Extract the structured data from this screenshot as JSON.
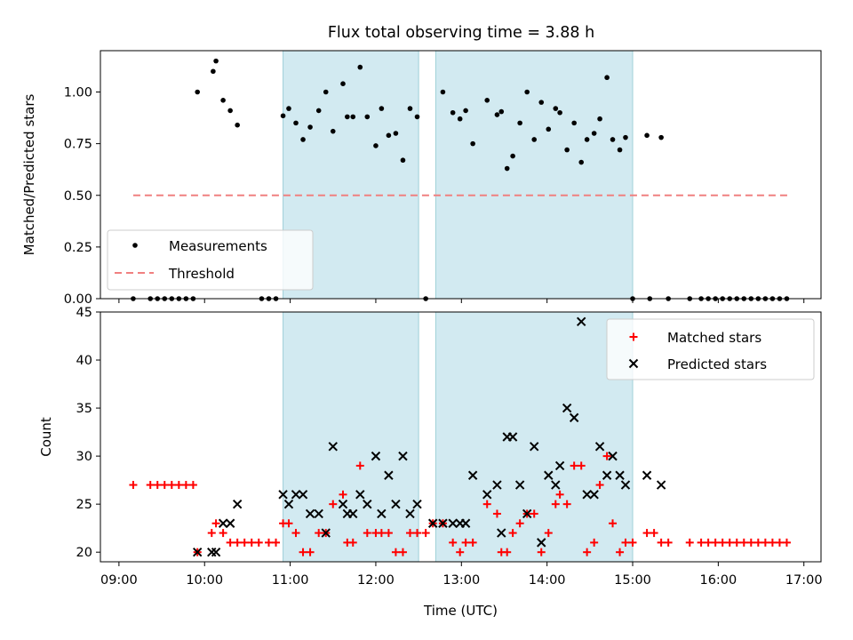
{
  "chart_data": [
    {
      "type": "scatter",
      "title": "Flux total observing time = 3.88 h",
      "xlabel": "",
      "ylabel": "Matched/Predicted stars",
      "xlim": [
        "08:47",
        "17:12"
      ],
      "ylim": [
        0,
        1.2
      ],
      "xticks": [
        "09:00",
        "10:00",
        "11:00",
        "12:00",
        "13:00",
        "14:00",
        "15:00",
        "16:00",
        "17:00"
      ],
      "yticks": [
        "0.00",
        "0.25",
        "0.50",
        "0.75",
        "1.00"
      ],
      "shaded_intervals": [
        [
          "10:55",
          "12:30"
        ],
        [
          "12:42",
          "15:00"
        ]
      ],
      "legend": {
        "placement": "lower-left",
        "entries": [
          "Measurements",
          "Threshold"
        ]
      },
      "colors": {
        "measurements": "#000000",
        "threshold": "#f08080",
        "shade": "#add8e6"
      },
      "threshold": {
        "name": "Threshold",
        "value": 0.5,
        "x_range": [
          "09:10",
          "16:50"
        ]
      },
      "series": [
        {
          "name": "Measurements",
          "points": [
            [
              "09:10",
              0
            ],
            [
              "09:22",
              0
            ],
            [
              "09:27",
              0
            ],
            [
              "09:32",
              0
            ],
            [
              "09:37",
              0
            ],
            [
              "09:42",
              0
            ],
            [
              "09:47",
              0
            ],
            [
              "09:52",
              0
            ],
            [
              "09:55",
              1.0
            ],
            [
              "10:06",
              1.1
            ],
            [
              "10:08",
              1.15
            ],
            [
              "10:13",
              0.96
            ],
            [
              "10:18",
              0.91
            ],
            [
              "10:23",
              0.84
            ],
            [
              "10:40",
              0
            ],
            [
              "10:45",
              0
            ],
            [
              "10:50",
              0
            ],
            [
              "10:55",
              0.885
            ],
            [
              "10:59",
              0.92
            ],
            [
              "11:04",
              0.85
            ],
            [
              "11:09",
              0.77
            ],
            [
              "11:14",
              0.83
            ],
            [
              "11:20",
              0.91
            ],
            [
              "11:25",
              1.0
            ],
            [
              "11:30",
              0.81
            ],
            [
              "11:37",
              1.04
            ],
            [
              "11:40",
              0.88
            ],
            [
              "11:44",
              0.88
            ],
            [
              "11:49",
              1.12
            ],
            [
              "11:54",
              0.88
            ],
            [
              "12:00",
              0.74
            ],
            [
              "12:04",
              0.92
            ],
            [
              "12:09",
              0.79
            ],
            [
              "12:14",
              0.8
            ],
            [
              "12:19",
              0.67
            ],
            [
              "12:24",
              0.92
            ],
            [
              "12:29",
              0.88
            ],
            [
              "12:35",
              0
            ],
            [
              "12:47",
              1.0
            ],
            [
              "12:54",
              0.9
            ],
            [
              "12:59",
              0.87
            ],
            [
              "13:03",
              0.91
            ],
            [
              "13:08",
              0.75
            ],
            [
              "13:18",
              0.96
            ],
            [
              "13:25",
              0.89
            ],
            [
              "13:28",
              0.905
            ],
            [
              "13:32",
              0.63
            ],
            [
              "13:36",
              0.69
            ],
            [
              "13:41",
              0.85
            ],
            [
              "13:46",
              1.0
            ],
            [
              "13:51",
              0.77
            ],
            [
              "13:56",
              0.95
            ],
            [
              "14:01",
              0.82
            ],
            [
              "14:06",
              0.92
            ],
            [
              "14:09",
              0.9
            ],
            [
              "14:14",
              0.72
            ],
            [
              "14:19",
              0.85
            ],
            [
              "14:24",
              0.66
            ],
            [
              "14:28",
              0.77
            ],
            [
              "14:33",
              0.8
            ],
            [
              "14:37",
              0.87
            ],
            [
              "14:42",
              1.07
            ],
            [
              "14:46",
              0.77
            ],
            [
              "14:51",
              0.72
            ],
            [
              "14:55",
              0.78
            ],
            [
              "15:10",
              0.79
            ],
            [
              "15:20",
              0.78
            ],
            [
              "15:00",
              0
            ],
            [
              "15:12",
              0
            ],
            [
              "15:25",
              0
            ],
            [
              "15:40",
              0
            ],
            [
              "15:48",
              0
            ],
            [
              "15:53",
              0
            ],
            [
              "15:58",
              0
            ],
            [
              "16:03",
              0
            ],
            [
              "16:08",
              0
            ],
            [
              "16:13",
              0
            ],
            [
              "16:18",
              0
            ],
            [
              "16:23",
              0
            ],
            [
              "16:28",
              0
            ],
            [
              "16:33",
              0
            ],
            [
              "16:38",
              0
            ],
            [
              "16:43",
              0
            ],
            [
              "16:48",
              0
            ]
          ]
        }
      ]
    },
    {
      "type": "scatter",
      "title": "",
      "xlabel": "Time (UTC)",
      "ylabel": "Count",
      "xlim": [
        "08:47",
        "17:12"
      ],
      "ylim": [
        19,
        45
      ],
      "xticks": [
        "09:00",
        "10:00",
        "11:00",
        "12:00",
        "13:00",
        "14:00",
        "15:00",
        "16:00",
        "17:00"
      ],
      "yticks": [
        "20",
        "25",
        "30",
        "35",
        "40",
        "45"
      ],
      "shaded_intervals": [
        [
          "10:55",
          "12:30"
        ],
        [
          "12:42",
          "15:00"
        ]
      ],
      "legend": {
        "placement": "upper-right",
        "entries": [
          "Matched stars",
          "Predicted stars"
        ]
      },
      "colors": {
        "matched": "#ff0000",
        "predicted": "#000000",
        "shade": "#add8e6"
      },
      "series": [
        {
          "name": "Matched stars",
          "marker": "plus",
          "points": [
            [
              "09:10",
              27
            ],
            [
              "09:22",
              27
            ],
            [
              "09:27",
              27
            ],
            [
              "09:32",
              27
            ],
            [
              "09:37",
              27
            ],
            [
              "09:42",
              27
            ],
            [
              "09:47",
              27
            ],
            [
              "09:52",
              27
            ],
            [
              "09:55",
              20
            ],
            [
              "10:05",
              22
            ],
            [
              "10:08",
              23
            ],
            [
              "10:13",
              22
            ],
            [
              "10:18",
              21
            ],
            [
              "10:23",
              21
            ],
            [
              "10:28",
              21
            ],
            [
              "10:33",
              21
            ],
            [
              "10:38",
              21
            ],
            [
              "10:45",
              21
            ],
            [
              "10:50",
              21
            ],
            [
              "10:55",
              23
            ],
            [
              "10:59",
              23
            ],
            [
              "11:04",
              22
            ],
            [
              "11:09",
              20
            ],
            [
              "11:14",
              20
            ],
            [
              "11:20",
              22
            ],
            [
              "11:25",
              22
            ],
            [
              "11:30",
              25
            ],
            [
              "11:37",
              26
            ],
            [
              "11:40",
              21
            ],
            [
              "11:44",
              21
            ],
            [
              "11:49",
              29
            ],
            [
              "11:54",
              22
            ],
            [
              "12:00",
              22
            ],
            [
              "12:04",
              22
            ],
            [
              "12:09",
              22
            ],
            [
              "12:14",
              20
            ],
            [
              "12:19",
              20
            ],
            [
              "12:24",
              22
            ],
            [
              "12:29",
              22
            ],
            [
              "12:35",
              22
            ],
            [
              "12:40",
              23
            ],
            [
              "12:47",
              23
            ],
            [
              "12:54",
              21
            ],
            [
              "12:59",
              20
            ],
            [
              "13:03",
              21
            ],
            [
              "13:08",
              21
            ],
            [
              "13:18",
              25
            ],
            [
              "13:25",
              24
            ],
            [
              "13:28",
              20
            ],
            [
              "13:32",
              20
            ],
            [
              "13:36",
              22
            ],
            [
              "13:41",
              23
            ],
            [
              "13:46",
              24
            ],
            [
              "13:51",
              24
            ],
            [
              "13:56",
              20
            ],
            [
              "14:01",
              22
            ],
            [
              "14:06",
              25
            ],
            [
              "14:09",
              26
            ],
            [
              "14:14",
              25
            ],
            [
              "14:19",
              29
            ],
            [
              "14:24",
              29
            ],
            [
              "14:28",
              20
            ],
            [
              "14:33",
              21
            ],
            [
              "14:37",
              27
            ],
            [
              "14:42",
              30
            ],
            [
              "14:46",
              23
            ],
            [
              "14:51",
              20
            ],
            [
              "14:55",
              21
            ],
            [
              "15:00",
              21
            ],
            [
              "15:10",
              22
            ],
            [
              "15:15",
              22
            ],
            [
              "15:20",
              21
            ],
            [
              "15:25",
              21
            ],
            [
              "15:40",
              21
            ],
            [
              "15:48",
              21
            ],
            [
              "15:53",
              21
            ],
            [
              "15:58",
              21
            ],
            [
              "16:03",
              21
            ],
            [
              "16:08",
              21
            ],
            [
              "16:13",
              21
            ],
            [
              "16:18",
              21
            ],
            [
              "16:23",
              21
            ],
            [
              "16:28",
              21
            ],
            [
              "16:33",
              21
            ],
            [
              "16:38",
              21
            ],
            [
              "16:43",
              21
            ],
            [
              "16:48",
              21
            ]
          ]
        },
        {
          "name": "Predicted stars",
          "marker": "x",
          "points": [
            [
              "09:55",
              20
            ],
            [
              "10:05",
              20
            ],
            [
              "10:08",
              20
            ],
            [
              "10:13",
              23
            ],
            [
              "10:18",
              23
            ],
            [
              "10:23",
              25
            ],
            [
              "10:55",
              26
            ],
            [
              "10:59",
              25
            ],
            [
              "11:04",
              26
            ],
            [
              "11:09",
              26
            ],
            [
              "11:14",
              24
            ],
            [
              "11:20",
              24
            ],
            [
              "11:25",
              22
            ],
            [
              "11:30",
              31
            ],
            [
              "11:37",
              25
            ],
            [
              "11:40",
              24
            ],
            [
              "11:44",
              24
            ],
            [
              "11:49",
              26
            ],
            [
              "11:54",
              25
            ],
            [
              "12:00",
              30
            ],
            [
              "12:04",
              24
            ],
            [
              "12:09",
              28
            ],
            [
              "12:14",
              25
            ],
            [
              "12:19",
              30
            ],
            [
              "12:24",
              24
            ],
            [
              "12:29",
              25
            ],
            [
              "12:40",
              23
            ],
            [
              "12:47",
              23
            ],
            [
              "12:54",
              23
            ],
            [
              "12:59",
              23
            ],
            [
              "13:03",
              23
            ],
            [
              "13:08",
              28
            ],
            [
              "13:18",
              26
            ],
            [
              "13:25",
              27
            ],
            [
              "13:28",
              22
            ],
            [
              "13:32",
              32
            ],
            [
              "13:36",
              32
            ],
            [
              "13:41",
              27
            ],
            [
              "13:46",
              24
            ],
            [
              "13:51",
              31
            ],
            [
              "13:56",
              21
            ],
            [
              "14:01",
              28
            ],
            [
              "14:06",
              27
            ],
            [
              "14:09",
              29
            ],
            [
              "14:14",
              35
            ],
            [
              "14:19",
              34
            ],
            [
              "14:24",
              44
            ],
            [
              "14:28",
              26
            ],
            [
              "14:33",
              26
            ],
            [
              "14:37",
              31
            ],
            [
              "14:42",
              28
            ],
            [
              "14:46",
              30
            ],
            [
              "14:51",
              28
            ],
            [
              "14:55",
              27
            ],
            [
              "15:10",
              28
            ],
            [
              "15:20",
              27
            ]
          ]
        }
      ]
    }
  ]
}
